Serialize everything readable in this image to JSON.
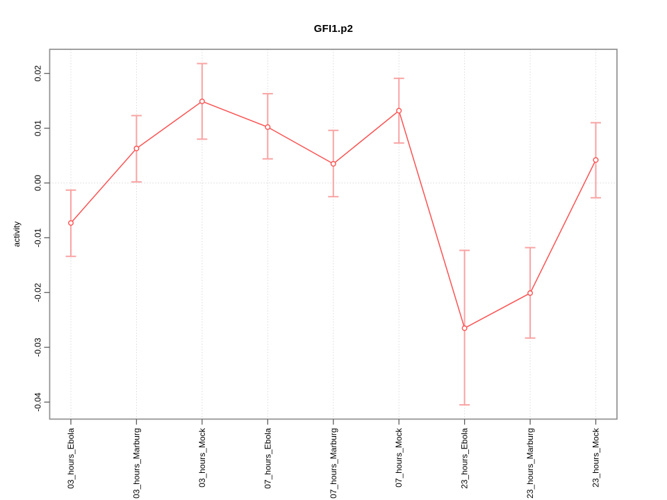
{
  "window": {
    "background": "#ffffff"
  },
  "chart_data": {
    "type": "line",
    "title": "GFI1.p2",
    "xlabel": "",
    "ylabel": "activity",
    "legend": "none",
    "grid": "vertical dotted gridlines at each category plus dotted horizontal line at zero",
    "marker": "open-circle",
    "categories": [
      "03_hours_Ebola",
      "03_hours_Marburg",
      "03_hours_Mock",
      "07_hours_Ebola",
      "07_hours_Marburg",
      "07_hours_Mock",
      "23_hours_Ebola",
      "23_hours_Marburg",
      "23_hours_Mock"
    ],
    "series": [
      {
        "name": "activity",
        "values": [
          -0.0073,
          0.0063,
          0.0149,
          0.0102,
          0.0035,
          0.0132,
          -0.0265,
          -0.0201,
          0.0042
        ],
        "error_upper": [
          -0.0013,
          0.0123,
          0.0218,
          0.0163,
          0.0096,
          0.0191,
          -0.0123,
          -0.0118,
          0.011
        ],
        "error_lower": [
          -0.0134,
          0.0002,
          0.008,
          0.0044,
          -0.0025,
          0.0073,
          -0.0405,
          -0.0283,
          -0.0027
        ]
      }
    ],
    "ylim": [
      -0.0431,
      0.0244
    ],
    "yticks": [
      -0.04,
      -0.03,
      -0.02,
      -0.01,
      0,
      0.01,
      0.02
    ],
    "ytick_labels": [
      "-0.04",
      "-0.03",
      "-0.02",
      "-0.01",
      "0.00",
      "0.01",
      "0.02"
    ],
    "zero_line": 0,
    "colors": {
      "line": "#fa5252",
      "error_bar": "#f9a3a3",
      "marker_stroke": "#fa5252",
      "marker_fill": "#ffffff",
      "grid": "#d9d9d9",
      "box": "#909090",
      "tick": "#5c5c5c",
      "text": "#000000"
    }
  }
}
